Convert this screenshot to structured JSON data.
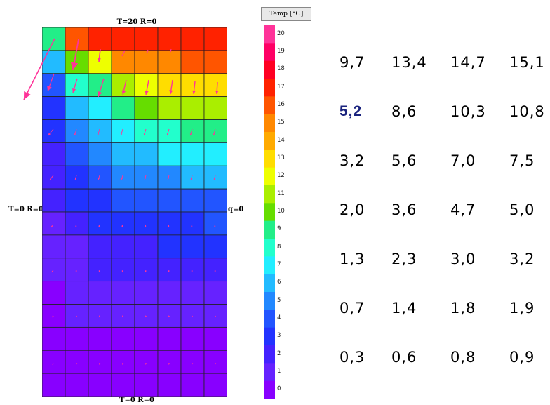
{
  "boundary": {
    "top": "T=20 R=0",
    "bottom": "T=0 R=0",
    "left": "T=0 R=0",
    "right": "q=0"
  },
  "legend": {
    "title": "Temp [°C]",
    "ticks": [
      "20",
      "19",
      "18",
      "17",
      "16",
      "15",
      "14",
      "13",
      "12",
      "11",
      "10",
      "9",
      "8",
      "7",
      "6",
      "5",
      "4",
      "3",
      "2",
      "1",
      "0"
    ],
    "colors": [
      "#ff3399",
      "#ff0066",
      "#ff0022",
      "#ff2200",
      "#ff5500",
      "#ff8800",
      "#ffaa00",
      "#ffdd00",
      "#eeff00",
      "#aaee00",
      "#66dd00",
      "#22ee88",
      "#22ffcc",
      "#22eeff",
      "#22bbff",
      "#2288ff",
      "#2255ff",
      "#2233ff",
      "#4422ff",
      "#6622ff",
      "#8800ff"
    ]
  },
  "temperature_field": [
    [
      9,
      16,
      17,
      17,
      17,
      17,
      17,
      17
    ],
    [
      6,
      10,
      12,
      15,
      15,
      15,
      16,
      16
    ],
    [
      4,
      8,
      9,
      11,
      12,
      13,
      13,
      13
    ],
    [
      3,
      6,
      7,
      9,
      10,
      11,
      11,
      11
    ],
    [
      3,
      5,
      6,
      7,
      8,
      8,
      9,
      9
    ],
    [
      2,
      4,
      5,
      6,
      6,
      7,
      7,
      7
    ],
    [
      2,
      3,
      4,
      5,
      5,
      5,
      6,
      6
    ],
    [
      2,
      3,
      3,
      4,
      4,
      4,
      4,
      4
    ],
    [
      1,
      2,
      3,
      3,
      3,
      3,
      3,
      4
    ],
    [
      1,
      1,
      2,
      2,
      2,
      3,
      3,
      3
    ],
    [
      1,
      1,
      2,
      2,
      2,
      2,
      2,
      2
    ],
    [
      0,
      1,
      1,
      1,
      1,
      1,
      1,
      1
    ],
    [
      0,
      1,
      1,
      1,
      1,
      1,
      1,
      1
    ],
    [
      0,
      0,
      0,
      0,
      0,
      0,
      0,
      0
    ],
    [
      0,
      0,
      0,
      0,
      0,
      0,
      0,
      0
    ],
    [
      0,
      0,
      0,
      0,
      0,
      0,
      0,
      0
    ]
  ],
  "values_table": [
    [
      "9,7",
      "13,4",
      "14,7",
      "15,1"
    ],
    [
      "5,2",
      "8,6",
      "10,3",
      "10,8"
    ],
    [
      "3,2",
      "5,6",
      "7,0",
      "7,5"
    ],
    [
      "2,0",
      "3,6",
      "4,7",
      "5,0"
    ],
    [
      "1,3",
      "2,3",
      "3,0",
      "3,2"
    ],
    [
      "0,7",
      "1,4",
      "1,8",
      "1,9"
    ],
    [
      "0,3",
      "0,6",
      "0,8",
      "0,9"
    ]
  ],
  "highlight": {
    "row": 1,
    "col": 0,
    "color": "#1a237e"
  },
  "arrow_color": "#ff3399"
}
